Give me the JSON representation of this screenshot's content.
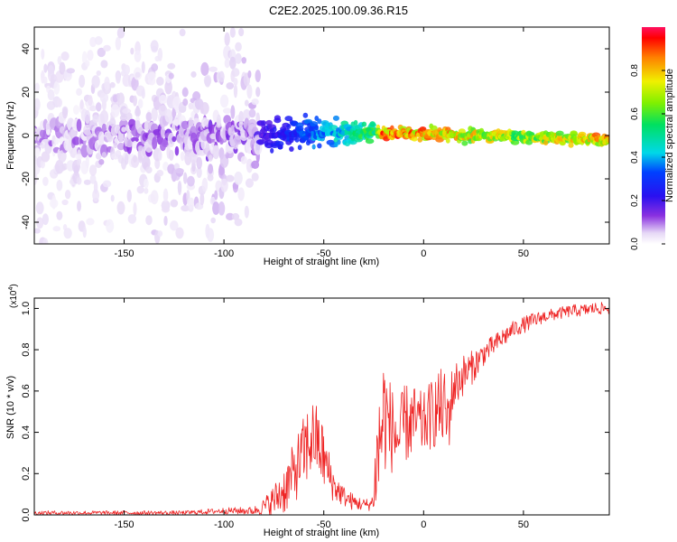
{
  "figure": {
    "title": "C2E2.2025.100.09.36.R15"
  },
  "chart_data": [
    {
      "type": "heatmap",
      "title": "C2E2.2025.100.09.36.R15",
      "xlabel": "Height of straight line (km)",
      "ylabel": "Frequency (Hz)",
      "xlim": [
        -195,
        93
      ],
      "ylim": [
        -50,
        50
      ],
      "x_ticks": [
        -150,
        -100,
        -50,
        0,
        50
      ],
      "y_ticks": [
        -40,
        -20,
        0,
        20,
        40
      ],
      "colorbar": {
        "label": "Normalized spectral amplitude",
        "range": [
          0,
          1
        ],
        "ticks": [
          "0.0",
          "0.2",
          "0.4",
          "0.6",
          "0.8"
        ],
        "colormap": "rainbow (purple-blue-cyan-green-yellow-red)"
      },
      "description_points": [
        {
          "x": -195,
          "center": 0,
          "spread": 45,
          "amplitude": 0.1
        },
        {
          "x": -90,
          "center": 0,
          "spread": 45,
          "amplitude": 0.15
        },
        {
          "x": -80,
          "center": 0,
          "spread": 12,
          "amplitude": 0.2
        },
        {
          "x": -50,
          "center": 1,
          "spread": 5,
          "amplitude": 0.4
        },
        {
          "x": -25,
          "center": 2,
          "spread": 3,
          "amplitude": 0.6
        },
        {
          "x": -20,
          "center": 1,
          "spread": 2,
          "amplitude": 0.9
        },
        {
          "x": 0,
          "center": 1,
          "spread": 2,
          "amplitude": 0.85
        },
        {
          "x": 50,
          "center": -1,
          "spread": 2,
          "amplitude": 0.7
        },
        {
          "x": 93,
          "center": -2,
          "spread": 2,
          "amplitude": 0.85
        }
      ],
      "grid": false
    },
    {
      "type": "line",
      "title": "",
      "xlabel": "Height of straight line (km)",
      "ylabel": "SNR (10 * v/v)",
      "y_scale_label": "(x10",
      "y_scale_exp": "4",
      "xlim": [
        -195,
        93
      ],
      "ylim": [
        0,
        1.05
      ],
      "x_ticks": [
        -150,
        -100,
        -50,
        0,
        50
      ],
      "y_ticks": [
        "0.0",
        "0.2",
        "0.4",
        "0.6",
        "0.8",
        "1.0"
      ],
      "series": [
        {
          "color": "#ee2222",
          "x": [
            -195,
            -120,
            -100,
            -85,
            -80,
            -75,
            -70,
            -65,
            -60,
            -57,
            -55,
            -52,
            -50,
            -45,
            -40,
            -35,
            -30,
            -27,
            -25,
            -24,
            -22,
            -20,
            -18,
            -15,
            -12,
            -10,
            -5,
            0,
            5,
            10,
            12,
            15,
            20,
            25,
            30,
            35,
            40,
            45,
            50,
            55,
            60,
            65,
            70,
            75,
            80,
            85,
            93
          ],
          "y": [
            0.01,
            0.01,
            0.02,
            0.02,
            0.04,
            0.07,
            0.12,
            0.2,
            0.3,
            0.36,
            0.38,
            0.33,
            0.27,
            0.14,
            0.09,
            0.06,
            0.05,
            0.05,
            0.07,
            0.22,
            0.35,
            0.5,
            0.45,
            0.4,
            0.36,
            0.44,
            0.45,
            0.44,
            0.5,
            0.52,
            0.45,
            0.62,
            0.68,
            0.72,
            0.78,
            0.82,
            0.86,
            0.9,
            0.92,
            0.94,
            0.96,
            0.97,
            0.98,
            0.99,
            0.99,
            1.0,
            1.0
          ],
          "noise": [
            0.01,
            0.01,
            0.015,
            0.02,
            0.04,
            0.08,
            0.12,
            0.15,
            0.18,
            0.2,
            0.18,
            0.18,
            0.15,
            0.08,
            0.05,
            0.04,
            0.03,
            0.03,
            0.04,
            0.25,
            0.3,
            0.3,
            0.25,
            0.2,
            0.18,
            0.2,
            0.18,
            0.15,
            0.18,
            0.2,
            0.2,
            0.12,
            0.1,
            0.08,
            0.06,
            0.05,
            0.05,
            0.04,
            0.04,
            0.04,
            0.03,
            0.03,
            0.03,
            0.03,
            0.03,
            0.03,
            0.03
          ]
        }
      ],
      "grid": false
    }
  ]
}
